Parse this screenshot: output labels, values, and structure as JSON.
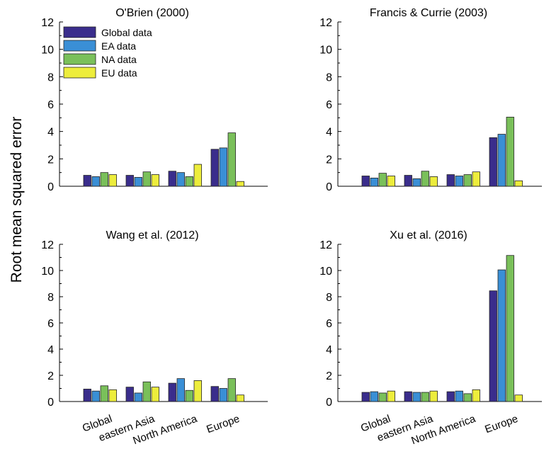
{
  "figure": {
    "ylabel": "Root mean squared error",
    "categories": [
      "Global",
      "eastern Asia",
      "North America",
      "Europe"
    ],
    "legend": [
      "Global data",
      "EA data",
      "NA data",
      "EU data"
    ],
    "colors": [
      "#3a2d8c",
      "#3a8fd6",
      "#7ac05a",
      "#eded3c"
    ],
    "ylim": [
      0,
      12
    ],
    "yticks": [
      "0",
      "2",
      "4",
      "6",
      "8",
      "10",
      "12"
    ]
  },
  "chart_data": [
    {
      "type": "bar",
      "title": "O'Brien (2000)",
      "categories": [
        "Global",
        "eastern Asia",
        "North America",
        "Europe"
      ],
      "series": [
        {
          "name": "Global data",
          "values": [
            0.8,
            0.8,
            1.1,
            2.7
          ]
        },
        {
          "name": "EA data",
          "values": [
            0.7,
            0.65,
            1.0,
            2.8
          ]
        },
        {
          "name": "NA data",
          "values": [
            1.0,
            1.05,
            0.7,
            3.9
          ]
        },
        {
          "name": "EU data",
          "values": [
            0.85,
            0.85,
            1.6,
            0.35
          ]
        }
      ],
      "ylabel": "Root mean squared error",
      "ylim": [
        0,
        12
      ],
      "legend_position": "top-left"
    },
    {
      "type": "bar",
      "title": "Francis & Currie (2003)",
      "categories": [
        "Global",
        "eastern Asia",
        "North America",
        "Europe"
      ],
      "series": [
        {
          "name": "Global data",
          "values": [
            0.75,
            0.8,
            0.85,
            3.55
          ]
        },
        {
          "name": "EA data",
          "values": [
            0.6,
            0.55,
            0.75,
            3.8
          ]
        },
        {
          "name": "NA data",
          "values": [
            0.95,
            1.1,
            0.85,
            5.05
          ]
        },
        {
          "name": "EU data",
          "values": [
            0.75,
            0.7,
            1.05,
            0.4
          ]
        }
      ],
      "ylim": [
        0,
        12
      ]
    },
    {
      "type": "bar",
      "title": "Wang et al. (2012)",
      "categories": [
        "Global",
        "eastern Asia",
        "North America",
        "Europe"
      ],
      "series": [
        {
          "name": "Global data",
          "values": [
            0.95,
            1.1,
            1.4,
            1.15
          ]
        },
        {
          "name": "EA data",
          "values": [
            0.8,
            0.65,
            1.75,
            1.0
          ]
        },
        {
          "name": "NA data",
          "values": [
            1.2,
            1.5,
            0.85,
            1.75
          ]
        },
        {
          "name": "EU data",
          "values": [
            0.9,
            1.1,
            1.6,
            0.5
          ]
        }
      ],
      "ylim": [
        0,
        12
      ]
    },
    {
      "type": "bar",
      "title": "Xu et al. (2016)",
      "categories": [
        "Global",
        "eastern Asia",
        "North America",
        "Europe"
      ],
      "series": [
        {
          "name": "Global data",
          "values": [
            0.7,
            0.75,
            0.75,
            8.45
          ]
        },
        {
          "name": "EA data",
          "values": [
            0.75,
            0.7,
            0.8,
            10.05
          ]
        },
        {
          "name": "NA data",
          "values": [
            0.65,
            0.7,
            0.6,
            11.15
          ]
        },
        {
          "name": "EU data",
          "values": [
            0.8,
            0.8,
            0.9,
            0.5
          ]
        }
      ],
      "ylim": [
        0,
        12
      ]
    }
  ]
}
